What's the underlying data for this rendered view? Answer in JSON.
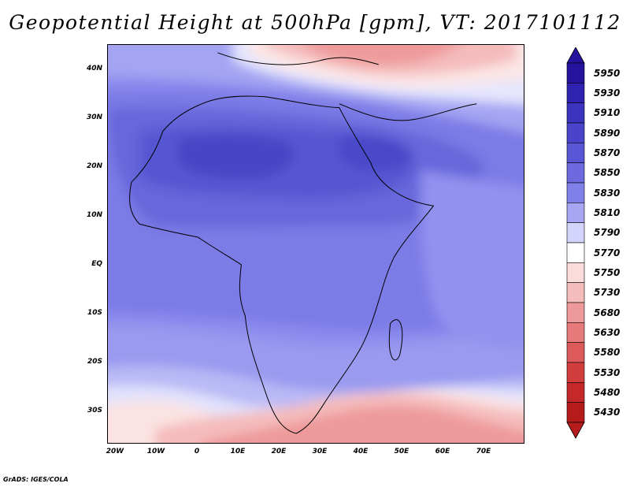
{
  "title": "Geopotential Height at 500hPa [gpm], VT: 2017101112",
  "credit": "GrADS: IGES/COLA",
  "map": {
    "lat_labels": [
      "40N",
      "30N",
      "20N",
      "10N",
      "EQ",
      "10S",
      "20S",
      "30S"
    ],
    "lon_labels": [
      "20W",
      "10W",
      "0",
      "10E",
      "20E",
      "30E",
      "40E",
      "50E",
      "60E",
      "70E"
    ],
    "field": "Geopotential height at 500 hPa",
    "units": "gpm",
    "valid_time": "2017101112"
  },
  "colorbar": {
    "labels": [
      "5950",
      "5930",
      "5910",
      "5890",
      "5870",
      "5850",
      "5830",
      "5810",
      "5790",
      "5770",
      "5750",
      "5730",
      "5680",
      "5630",
      "5580",
      "5530",
      "5480",
      "5430"
    ],
    "colors": [
      "#25139e",
      "#2f22b0",
      "#3c33bf",
      "#4a44cb",
      "#5a57d6",
      "#6c6ade",
      "#8080e9",
      "#a6a6f3",
      "#d3d3fb",
      "#ffffff",
      "#fbdcdc",
      "#f5bcbc",
      "#ee9a9a",
      "#e67a7a",
      "#dd5a5a",
      "#d23e3e",
      "#c52828",
      "#b51b1b"
    ]
  }
}
